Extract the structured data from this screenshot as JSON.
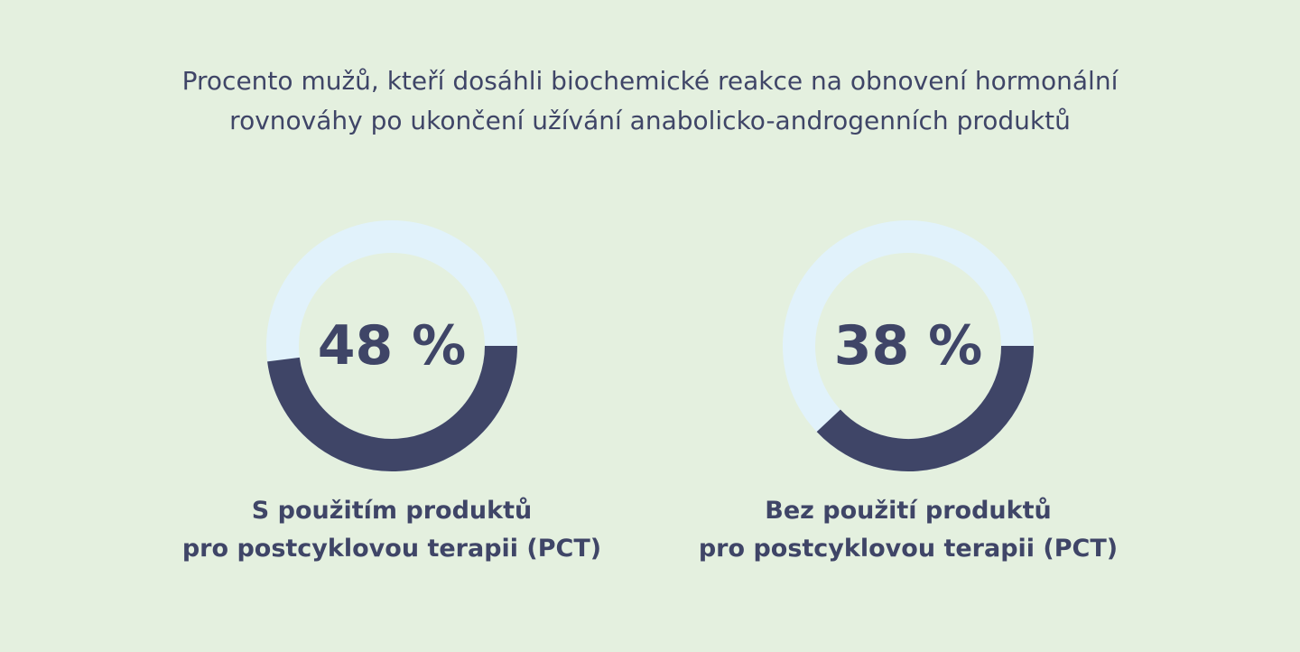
{
  "chart_data": {
    "type": "pie",
    "title": "Procento mužů, kteří dosáhli biochemické reakce na obnovení hormonální rovnováhy po ukončení užívání anabolicko-androgenních produktů",
    "title_lines": [
      "Procento mužů, kteří dosáhli biochemické reakce na obnovení hormonální",
      "rovnováhy po ukončení užívání anabolicko-androgenních produktů"
    ],
    "colors": {
      "background": "#e4f0df",
      "track": "#e1f2fb",
      "value": "#3f4567",
      "text": "#3f4567"
    },
    "donuts": [
      {
        "value": 48,
        "label": "48 %",
        "caption_lines": [
          "S použitím produktů",
          "pro postcyklovou terapii (PCT)"
        ]
      },
      {
        "value": 38,
        "label": "38 %",
        "caption_lines": [
          "Bez použití produktů",
          "pro postcyklovou terapii (PCT)"
        ]
      }
    ]
  }
}
